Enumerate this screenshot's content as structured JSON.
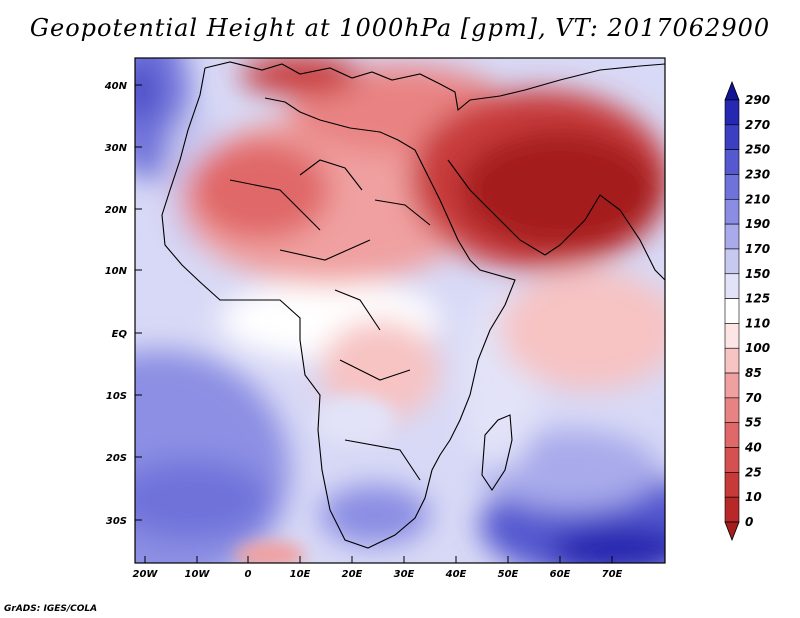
{
  "title": "Geopotential Height at 1000hPa [gpm], VT: 2017062900",
  "credit": "GrADS: IGES/COLA",
  "map": {
    "lat_labels": [
      "40N",
      "30N",
      "20N",
      "10N",
      "EQ",
      "10S",
      "20S",
      "30S"
    ],
    "lon_labels": [
      "20W",
      "10W",
      "0",
      "10E",
      "20E",
      "30E",
      "40E",
      "50E",
      "60E",
      "70E"
    ],
    "lon_range": [
      -22,
      80
    ],
    "lat_range": [
      -37,
      45
    ]
  },
  "colorbar": {
    "levels": [
      "0",
      "10",
      "25",
      "40",
      "55",
      "70",
      "85",
      "100",
      "110",
      "125",
      "150",
      "170",
      "190",
      "210",
      "230",
      "250",
      "270",
      "290"
    ],
    "colors": [
      "#a51e1e",
      "#b92828",
      "#c83a3a",
      "#d55050",
      "#e06868",
      "#e98383",
      "#f0a0a0",
      "#f7c3c3",
      "#fde5e5",
      "#ffffff",
      "#e2e3f8",
      "#c8c9f1",
      "#a8aaeb",
      "#8a8de3",
      "#6f72da",
      "#5558cf",
      "#3c3fc2",
      "#2528b0",
      "#131496"
    ]
  }
}
